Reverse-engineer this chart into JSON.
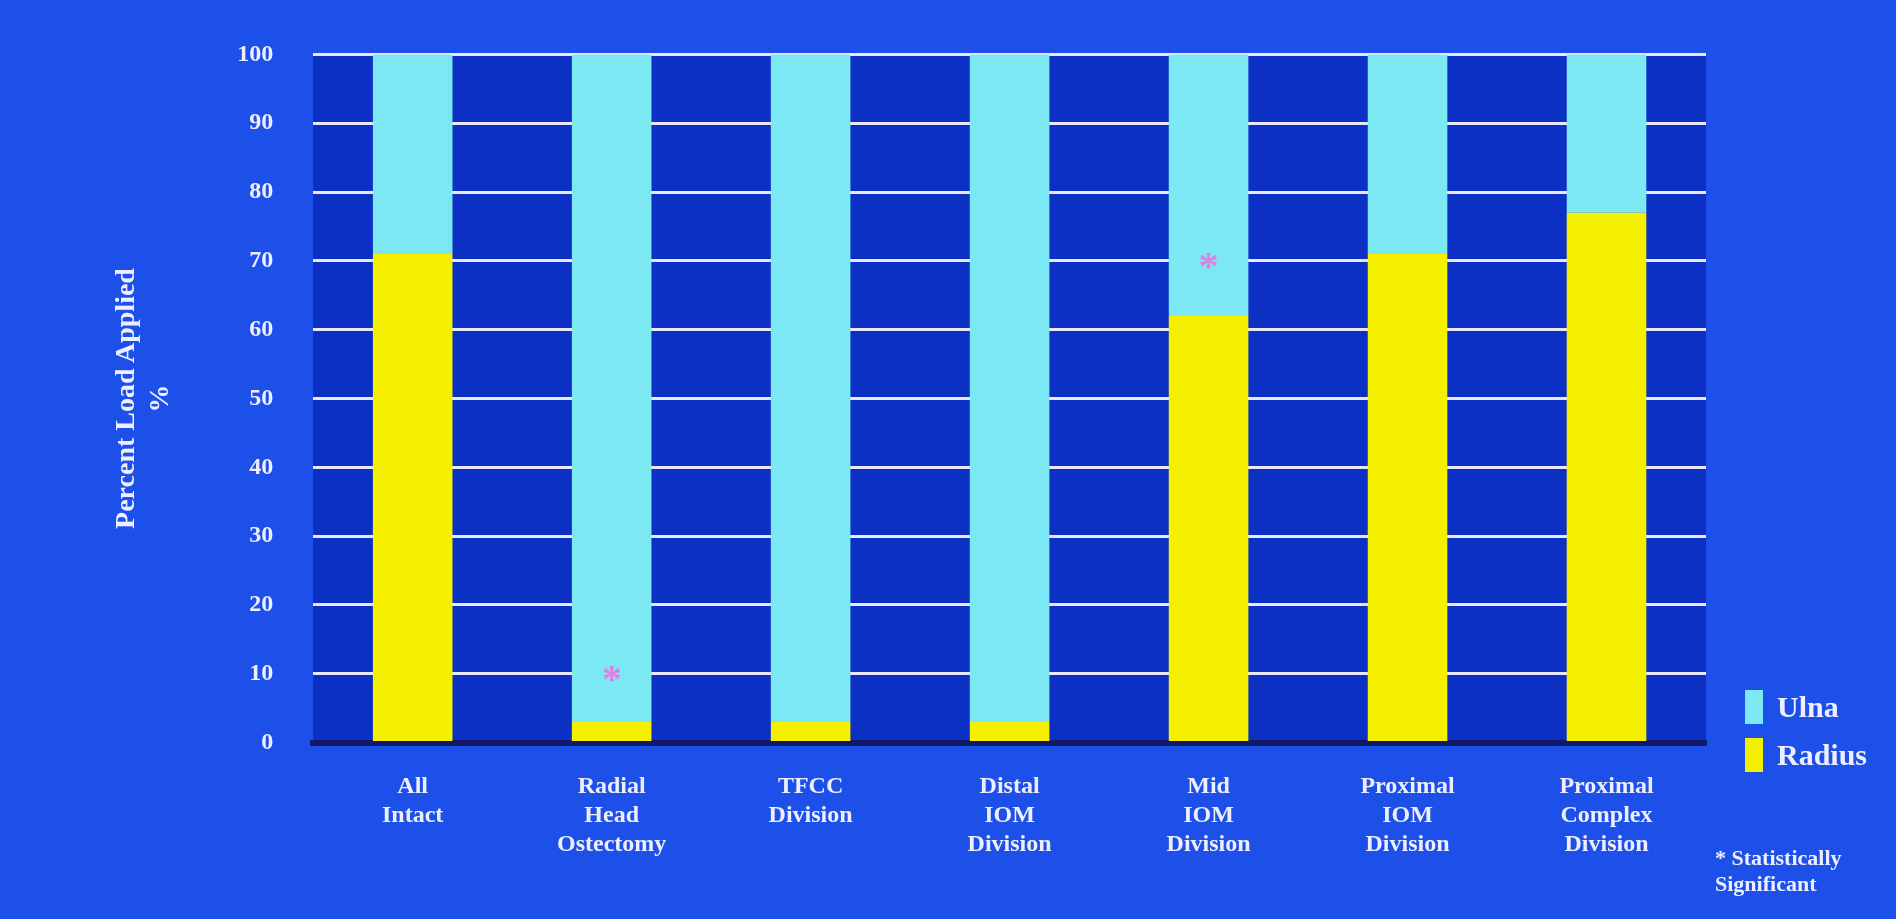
{
  "chart_data": {
    "type": "bar",
    "stacked": true,
    "ylabel": "Percent Load Applied\n%",
    "categories": [
      "All\nIntact",
      "Radial\nHead\nOstectomy",
      "TFCC\nDivision",
      "Distal\nIOM\nDivision",
      "Mid\nIOM\nDivision",
      "Proximal\nIOM\nDivision",
      "Proximal\nComplex\nDivision"
    ],
    "series": [
      {
        "name": "Radius",
        "color": "#f4f000",
        "values": [
          71,
          3,
          3,
          3,
          62,
          71,
          77
        ]
      },
      {
        "name": "Ulna",
        "color": "#7ce8f4",
        "values": [
          29,
          97,
          97,
          97,
          38,
          29,
          23
        ]
      }
    ],
    "ylim": [
      0,
      100
    ],
    "yticks": [
      0,
      10,
      20,
      30,
      40,
      50,
      60,
      70,
      80,
      90,
      100
    ],
    "grid": "y",
    "legend": "right",
    "annotations": [
      "*",
      "*",
      "* Statistically Significant"
    ]
  }
}
